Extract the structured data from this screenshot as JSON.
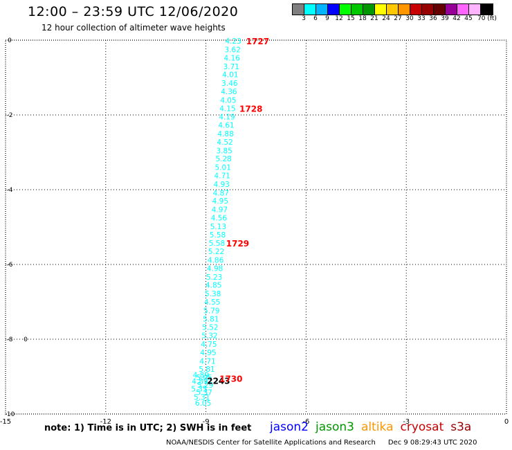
{
  "header": {
    "title": "12:00 – 23:59 UTC 12/06/2020",
    "subtitle": "12 hour collection of altimeter wave heights"
  },
  "legend": {
    "colors": [
      "#7f7f7f",
      "#00ffff",
      "#00b4ff",
      "#0000ff",
      "#00ff00",
      "#00c800",
      "#009600",
      "#ffff00",
      "#ffc800",
      "#ff9600",
      "#c80000",
      "#960000",
      "#640000",
      "#960096",
      "#ff64ff",
      "#ffb4ff",
      "#000000"
    ],
    "ticks": [
      "3",
      "6",
      "9",
      "12",
      "15",
      "18",
      "21",
      "24",
      "27",
      "30",
      "33",
      "36",
      "39",
      "42",
      "45",
      "70 (ft)"
    ]
  },
  "chart_data": {
    "type": "scatter",
    "title": "12:00 – 23:59 UTC 12/06/2020",
    "subtitle": "12 hour collection of altimeter wave heights",
    "xlim": [
      -15,
      0
    ],
    "ylim": [
      -10,
      0
    ],
    "x_ticks": [
      "-15",
      "-12",
      "-9",
      "-6",
      "-3",
      "0"
    ],
    "y_ticks": [
      "0",
      "-2",
      "-4",
      "-6",
      "-8",
      "-10"
    ],
    "grid": true,
    "series": [
      {
        "color": "#00ffff",
        "points": [
          {
            "x": -8.18,
            "y": -0.02,
            "label": "4.23"
          },
          {
            "x": -8.2,
            "y": -0.25,
            "label": "3.62"
          },
          {
            "x": -8.22,
            "y": -0.47,
            "label": "4.16"
          },
          {
            "x": -8.24,
            "y": -0.7,
            "label": "3.71"
          },
          {
            "x": -8.27,
            "y": -0.92,
            "label": "4.01"
          },
          {
            "x": -8.29,
            "y": -1.15,
            "label": "3.46"
          },
          {
            "x": -8.31,
            "y": -1.37,
            "label": "4.36"
          },
          {
            "x": -8.33,
            "y": -1.6,
            "label": "4.05"
          },
          {
            "x": -8.35,
            "y": -1.82,
            "label": "4.15"
          },
          {
            "x": -8.37,
            "y": -2.05,
            "label": "4.19"
          },
          {
            "x": -8.39,
            "y": -2.27,
            "label": "4.61"
          },
          {
            "x": -8.41,
            "y": -2.5,
            "label": "4.88"
          },
          {
            "x": -8.43,
            "y": -2.72,
            "label": "4.52"
          },
          {
            "x": -8.45,
            "y": -2.95,
            "label": "3.85"
          },
          {
            "x": -8.47,
            "y": -3.17,
            "label": "5.28"
          },
          {
            "x": -8.49,
            "y": -3.4,
            "label": "5.01"
          },
          {
            "x": -8.51,
            "y": -3.62,
            "label": "4.71"
          },
          {
            "x": -8.53,
            "y": -3.85,
            "label": "4.93"
          },
          {
            "x": -8.55,
            "y": -4.08,
            "label": "4.87"
          },
          {
            "x": -8.57,
            "y": -4.3,
            "label": "4.95"
          },
          {
            "x": -8.59,
            "y": -4.53,
            "label": "4.97"
          },
          {
            "x": -8.61,
            "y": -4.75,
            "label": "4.56"
          },
          {
            "x": -8.63,
            "y": -4.98,
            "label": "5.13"
          },
          {
            "x": -8.65,
            "y": -5.2,
            "label": "5.58"
          },
          {
            "x": -8.67,
            "y": -5.43,
            "label": "5.58"
          },
          {
            "x": -8.69,
            "y": -5.65,
            "label": "5.22"
          },
          {
            "x": -8.71,
            "y": -5.88,
            "label": "4.86"
          },
          {
            "x": -8.73,
            "y": -6.1,
            "label": "4.98"
          },
          {
            "x": -8.75,
            "y": -6.33,
            "label": "5.23"
          },
          {
            "x": -8.77,
            "y": -6.55,
            "label": "4.85"
          },
          {
            "x": -8.79,
            "y": -6.78,
            "label": "5.38"
          },
          {
            "x": -8.81,
            "y": -7.0,
            "label": "4.55"
          },
          {
            "x": -8.83,
            "y": -7.23,
            "label": "5.79"
          },
          {
            "x": -8.85,
            "y": -7.45,
            "label": "5.81"
          },
          {
            "x": -8.87,
            "y": -7.68,
            "label": "5.52"
          },
          {
            "x": -8.89,
            "y": -7.9,
            "label": "5.32"
          },
          {
            "x": -8.91,
            "y": -8.13,
            "label": "4.75"
          },
          {
            "x": -8.93,
            "y": -8.35,
            "label": "4.95"
          },
          {
            "x": -8.95,
            "y": -8.58,
            "label": "4.71"
          },
          {
            "x": -8.97,
            "y": -8.8,
            "label": "5.81"
          },
          {
            "x": -9.15,
            "y": -8.95,
            "label": "4.89"
          },
          {
            "x": -9.05,
            "y": -9.02,
            "label": "5.05"
          },
          {
            "x": -9.18,
            "y": -9.12,
            "label": "4.89"
          },
          {
            "x": -9.02,
            "y": -9.22,
            "label": "5.29"
          },
          {
            "x": -9.2,
            "y": -9.32,
            "label": "5.35"
          },
          {
            "x": -9.05,
            "y": -9.42,
            "label": "5.37"
          },
          {
            "x": -9.12,
            "y": -9.55,
            "label": "5.31"
          },
          {
            "x": -9.08,
            "y": -9.7,
            "label": "6.05"
          }
        ]
      }
    ],
    "annotations": [
      {
        "x": -7.45,
        "y": -0.02,
        "text": "1727",
        "color": "#ff0000"
      },
      {
        "x": -7.65,
        "y": -1.82,
        "text": "1728",
        "color": "#ff0000"
      },
      {
        "x": -8.05,
        "y": -5.43,
        "text": "1729",
        "color": "#ff0000"
      },
      {
        "x": -8.62,
        "y": -9.1,
        "text": "2243",
        "color": "#000000"
      },
      {
        "x": -8.25,
        "y": -9.05,
        "text": "1730",
        "color": "#ff0000"
      }
    ],
    "markers": [
      {
        "x": -14.4,
        "y": -8.0,
        "text": "0"
      }
    ]
  },
  "footer": {
    "note": "note:  1) Time is in UTC;  2) SWH is in feet",
    "satellites": [
      {
        "name": "jason2",
        "color": "#0000ff"
      },
      {
        "name": "jason3",
        "color": "#009600"
      },
      {
        "name": "altika",
        "color": "#ff9600"
      },
      {
        "name": "cryosat",
        "color": "#c80000"
      },
      {
        "name": "s3a",
        "color": "#960000"
      }
    ],
    "credit": "NOAA/NESDIS Center for Satellite Applications and Research",
    "timestamp": "Dec  9 08:29:43 UTC 2020"
  }
}
